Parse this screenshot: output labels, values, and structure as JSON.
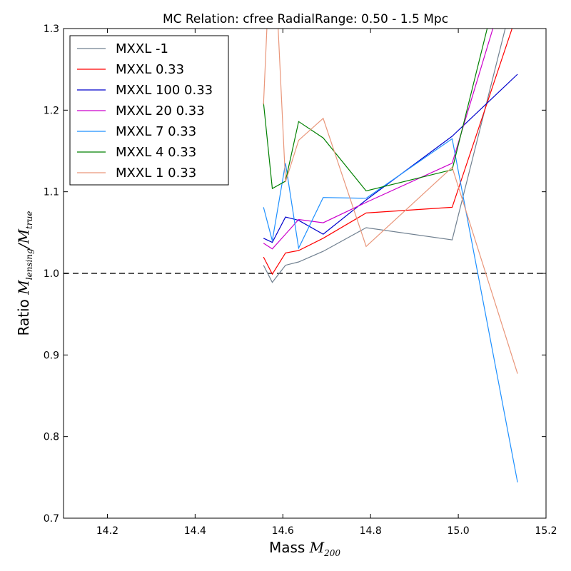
{
  "chart_data": {
    "type": "line",
    "title": "MC Relation: cfree RadialRange: 0.50 - 1.5 Mpc",
    "xlabel": {
      "prefix": "Mass ",
      "symbol": "M",
      "subscript": "200"
    },
    "ylabel": {
      "prefix": "Ratio ",
      "symbol": "M",
      "subscript": "lensing",
      "separator": "/",
      "symbol2": "M",
      "subscript2": "true"
    },
    "xlim": [
      14.1,
      15.2
    ],
    "ylim": [
      0.7,
      1.3
    ],
    "xticks": [
      "14.2",
      "14.4",
      "14.6",
      "14.8",
      "15.0",
      "15.2"
    ],
    "yticks": [
      "0.7",
      "0.8",
      "0.9",
      "1.0",
      "1.1",
      "1.2",
      "1.3"
    ],
    "reference_line": {
      "y": 1.0,
      "style": "dashed",
      "color": "#555555"
    },
    "legend_position": "top-left",
    "x": [
      14.556,
      14.576,
      14.606,
      14.636,
      14.692,
      14.79,
      14.986,
      15.135
    ],
    "series": [
      {
        "name": "MXXL -1",
        "color": "#708090",
        "values": [
          1.01,
          0.989,
          1.01,
          1.014,
          1.027,
          1.056,
          1.041,
          1.36
        ]
      },
      {
        "name": "MXXL 0.33",
        "color": "#ff0000",
        "values": [
          1.02,
          0.999,
          1.025,
          1.028,
          1.043,
          1.074,
          1.081,
          1.32
        ]
      },
      {
        "name": "MXXL 100 0.33",
        "color": "#0000cc",
        "values": [
          1.043,
          1.038,
          1.069,
          1.065,
          1.048,
          1.09,
          1.168,
          1.244
        ]
      },
      {
        "name": "MXXL 20 0.33",
        "color": "#cc00cc",
        "values": [
          1.037,
          1.03,
          1.048,
          1.066,
          1.062,
          1.087,
          1.135,
          1.4
        ]
      },
      {
        "name": "MXXL 7 0.33",
        "color": "#1e90ff",
        "values": [
          1.081,
          1.04,
          1.135,
          1.031,
          1.093,
          1.092,
          1.165,
          0.744
        ]
      },
      {
        "name": "MXXL 4 0.33",
        "color": "#008000",
        "values": [
          1.209,
          1.104,
          1.113,
          1.186,
          1.166,
          1.101,
          1.127,
          1.45
        ]
      },
      {
        "name": "MXXL 1 0.33",
        "color": "#e9967a",
        "values": [
          1.207,
          1.45,
          1.112,
          1.163,
          1.19,
          1.033,
          1.13,
          0.877
        ]
      }
    ]
  }
}
